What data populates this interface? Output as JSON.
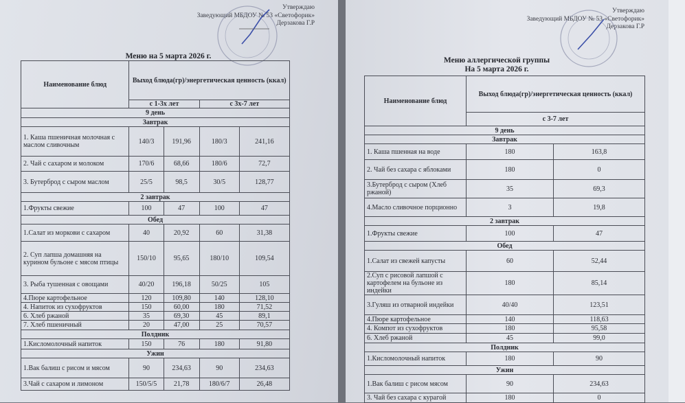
{
  "left_document": {
    "approval": {
      "line1": "Утверждаю",
      "line2": "Заведующий МБДОУ № 53 «Светофорик»",
      "line3": "Дерзакова Г.Р"
    },
    "title": "Меню на 5 марта 2026 г.",
    "table": {
      "header_name": "Наименование блюд",
      "header_output": "Выход блюда(гр)/энергетическая ценность (ккал)",
      "age_groups": [
        "с 1-3х лет",
        "с 3х-7 лет"
      ],
      "day": "9 день",
      "sections": [
        {
          "title": "Завтрак",
          "rows": [
            {
              "name": "1. Каша пшеничная молочная с маслом сливочным",
              "values": [
                "140/3",
                "191,96",
                "180/3",
                "241,16"
              ]
            },
            {
              "name": "2. Чай с сахаром и молоком",
              "values": [
                "170/6",
                "68,66",
                "180/6",
                "72,7"
              ]
            },
            {
              "name": "3. Бутерброд с сыром маслом",
              "values": [
                "25/5",
                "98,5",
                "30/5",
                "128,77"
              ]
            }
          ]
        },
        {
          "title": "2 завтрак",
          "rows": [
            {
              "name": "1.Фрукты свежие",
              "values": [
                "100",
                "47",
                "100",
                "47"
              ]
            }
          ]
        },
        {
          "title": "Обед",
          "rows": [
            {
              "name": "1.Салат из моркови с сахаром",
              "values": [
                "40",
                "20,92",
                "60",
                "31,38"
              ]
            },
            {
              "name": "2. Суп лапша домашняя на курином бульоне с мясом птицы",
              "values": [
                "150/10",
                "95,65",
                "180/10",
                "109,54"
              ]
            },
            {
              "name": "3. Рыба тушенная с овощами",
              "values": [
                "40/20",
                "196,18",
                "50/25",
                "105"
              ]
            },
            {
              "name": "4.Пюре картофельное",
              "values": [
                "120",
                "109,80",
                "140",
                "128,10"
              ]
            },
            {
              "name": "4. Напиток из сухофруктов",
              "values": [
                "150",
                "60,00",
                "180",
                "71,52"
              ]
            },
            {
              "name": "6. Хлеб ржаной",
              "values": [
                "35",
                "69,30",
                "45",
                "89,1"
              ]
            },
            {
              "name": "7. Хлеб пшеничный",
              "values": [
                "20",
                "47,00",
                "25",
                "70,57"
              ]
            }
          ]
        },
        {
          "title": "Полдник",
          "rows": [
            {
              "name": "1.Кисломолочный напиток",
              "values": [
                "150",
                "76",
                "180",
                "91,80"
              ]
            }
          ]
        },
        {
          "title": "Ужин",
          "rows": [
            {
              "name": "1.Вак балиш с рисом и мясом",
              "values": [
                "90",
                "234,63",
                "90",
                "234,63"
              ]
            },
            {
              "name": "3.Чай с сахаром и лимоном",
              "values": [
                "150/5/5",
                "21,78",
                "180/6/7",
                "26,48"
              ]
            }
          ]
        }
      ]
    }
  },
  "right_document": {
    "approval": {
      "line1": "Утверждаю",
      "line2": "Заведующий МБДОУ № 53 «Светофорик»",
      "line3": "Дерзакова Г.Р"
    },
    "title": "Меню аллергической группы",
    "subtitle": "На 5 марта 2026 г.",
    "table": {
      "header_name": "Наименование блюд",
      "header_output": "Выход блюда(гр)/энергетическая ценность (ккал)",
      "age_groups": [
        "с 3-7 лет"
      ],
      "day": "9 день",
      "sections": [
        {
          "title": "Завтрак",
          "rows": [
            {
              "name": "1. Каша пшенная на воде",
              "values": [
                "180",
                "163,8"
              ]
            },
            {
              "name": "2. Чай без сахара с яблоками",
              "values": [
                "180",
                "0"
              ]
            },
            {
              "name": "3.Бутерброд с сыром (Хлеб ржаной)",
              "values": [
                "35",
                "69,3"
              ]
            },
            {
              "name": "4.Масло сливочное порционно",
              "values": [
                "3",
                "19,8"
              ]
            }
          ]
        },
        {
          "title": "2 завтрак",
          "rows": [
            {
              "name": "1.Фрукты свежие",
              "values": [
                "100",
                "47"
              ]
            }
          ]
        },
        {
          "title": "Обед",
          "rows": [
            {
              "name": "1.Салат из свежей капусты",
              "values": [
                "60",
                "52,44"
              ]
            },
            {
              "name": "2.Суп с рисовой лапшой с картофелем на бульоне из индейки",
              "values": [
                "180",
                "85,14"
              ]
            },
            {
              "name": "3.Гуляш из отварной индейки",
              "values": [
                "40/40",
                "123,51"
              ]
            },
            {
              "name": "4.Пюре картофельное",
              "values": [
                "140",
                "118,63"
              ]
            },
            {
              "name": "4. Компот из сухофруктов",
              "values": [
                "180",
                "95,58"
              ]
            },
            {
              "name": "6. Хлеб ржаной",
              "values": [
                "45",
                "99,0"
              ]
            }
          ]
        },
        {
          "title": "Полдник",
          "rows": [
            {
              "name": "1.Кисломолочный напиток",
              "values": [
                "180",
                "90"
              ]
            }
          ]
        },
        {
          "title": "Ужин",
          "rows": [
            {
              "name": "1.Вак балиш с рисом мясом",
              "values": [
                "90",
                "234,63"
              ]
            },
            {
              "name": "3. Чай без сахара с курагой",
              "values": [
                "180",
                "0"
              ]
            }
          ]
        }
      ]
    }
  },
  "colors": {
    "paper": "#dfe2e8",
    "ink": "#2a2c33",
    "stamp": "#3b4fa8"
  }
}
